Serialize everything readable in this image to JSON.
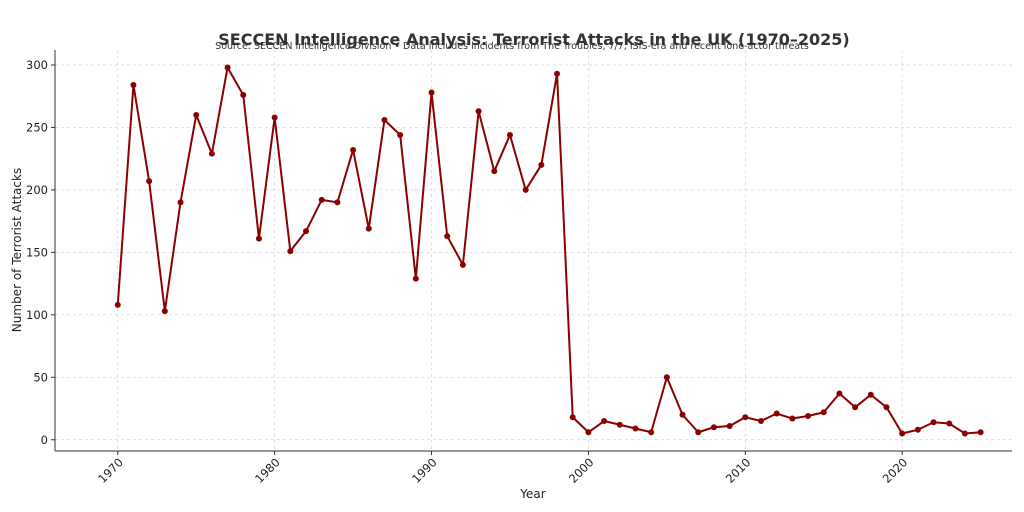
{
  "chart_data": {
    "type": "line",
    "title": "SECCEN Intelligence Analysis: Terrorist Attacks in the UK (1970–2025)",
    "subtitle": "Source: SECCEN Intelligence Division • Data includes incidents from The Troubles, 7/7, ISIS-era and recent lone-actor threats",
    "xlabel": "Year",
    "ylabel": "Number of Terrorist Attacks",
    "xlim": [
      1966,
      2027
    ],
    "ylim": [
      -9,
      312
    ],
    "x_ticks": [
      1970,
      1980,
      1990,
      2000,
      2010,
      2020
    ],
    "y_ticks": [
      0,
      50,
      100,
      150,
      200,
      250,
      300
    ],
    "grid": true,
    "line_color": "#8b0000",
    "x": [
      1970,
      1971,
      1972,
      1973,
      1974,
      1975,
      1976,
      1977,
      1978,
      1979,
      1980,
      1981,
      1982,
      1983,
      1984,
      1985,
      1986,
      1987,
      1988,
      1989,
      1990,
      1991,
      1992,
      1993,
      1994,
      1995,
      1996,
      1997,
      1998,
      1999,
      2000,
      2001,
      2002,
      2003,
      2004,
      2005,
      2006,
      2007,
      2008,
      2009,
      2010,
      2011,
      2012,
      2013,
      2014,
      2015,
      2016,
      2017,
      2018,
      2019,
      2020,
      2021,
      2022,
      2023,
      2024,
      2025
    ],
    "series": [
      {
        "values": [
          108,
          284,
          207,
          103,
          190,
          260,
          229,
          298,
          276,
          161,
          258,
          151,
          167,
          192,
          190,
          232,
          169,
          256,
          244,
          129,
          278,
          163,
          140,
          263,
          215,
          244,
          200,
          220,
          293,
          18,
          6,
          15,
          12,
          9,
          6,
          50,
          20,
          6,
          10,
          11,
          18,
          15,
          21,
          17,
          19,
          22,
          37,
          26,
          36,
          26,
          5,
          8,
          14,
          13,
          5,
          6
        ]
      }
    ]
  }
}
